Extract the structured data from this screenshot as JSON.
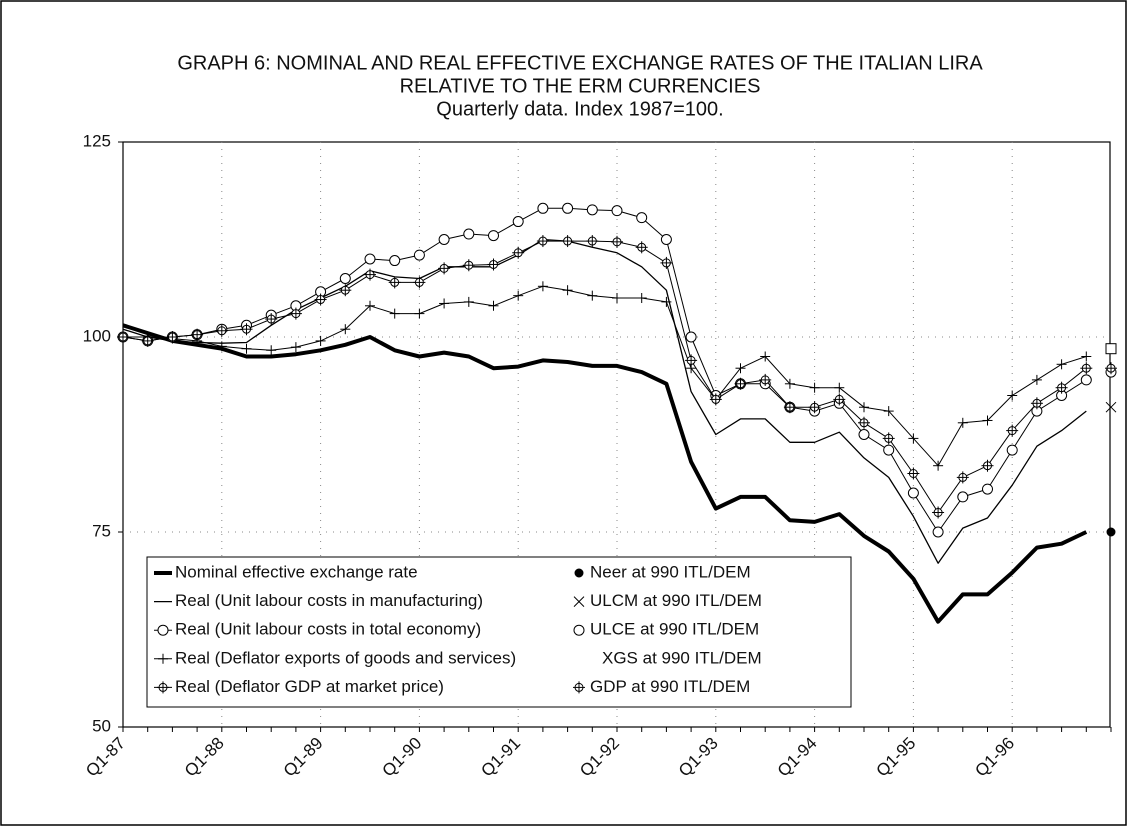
{
  "chart_data": {
    "type": "line",
    "title": "GRAPH 6:  NOMINAL AND REAL EFFECTIVE EXCHANGE RATES OF THE  ITALIAN LIRA",
    "title_line2": "RELATIVE TO THE ERM CURRENCIES",
    "subtitle": "Quarterly data.   Index 1987=100.",
    "categories": [
      "Q1-87",
      null,
      null,
      null,
      "Q1-88",
      null,
      null,
      null,
      "Q1-89",
      null,
      null,
      null,
      "Q1-90",
      null,
      null,
      null,
      "Q1-91",
      null,
      null,
      null,
      "Q1-92",
      null,
      null,
      null,
      "Q1-93",
      null,
      null,
      null,
      "Q1-94",
      null,
      null,
      null,
      "Q1-95",
      null,
      null,
      null,
      "Q1-96",
      null,
      null,
      null,
      null
    ],
    "ylim": [
      50,
      125
    ],
    "yticks": [
      50,
      75,
      100,
      125
    ],
    "grid": true,
    "series": [
      {
        "name": "Nominal effective exchange rate",
        "color": "#000",
        "width": 4,
        "marker": "none",
        "values": [
          101.5,
          100.5,
          99.5,
          99,
          98.5,
          97.5,
          97.5,
          97.8,
          98.3,
          99,
          100,
          98.3,
          97.5,
          98,
          97.5,
          96,
          96.2,
          97,
          96.8,
          96.3,
          96.3,
          95.5,
          94,
          84,
          78,
          79.5,
          79.5,
          76.5,
          76.3,
          77.3,
          74.5,
          72.5,
          69,
          63.5,
          67,
          67,
          69.8,
          73,
          73.5,
          75,
          null
        ]
      },
      {
        "name": "Real (Unit labour costs in manufacturing)",
        "color": "#000",
        "width": 1.3,
        "marker": "none",
        "values": [
          101,
          100,
          99.5,
          99.3,
          99.2,
          99.3,
          101.5,
          103.5,
          105,
          106.5,
          108.5,
          107.7,
          107.5,
          109,
          109,
          109,
          110.5,
          112.5,
          112.3,
          111.5,
          110.8,
          109,
          106,
          93,
          87.5,
          89.5,
          89.5,
          86.5,
          86.5,
          87.8,
          84.5,
          82,
          77,
          71,
          75.5,
          76.8,
          81,
          86,
          88,
          90.5,
          null
        ]
      },
      {
        "name": "Real (Unit labour costs in total economy)",
        "color": "#000",
        "width": 1,
        "marker": "circle",
        "values": [
          100,
          99.5,
          100,
          100.3,
          101,
          101.5,
          102.8,
          104,
          105.8,
          107.5,
          110,
          109.8,
          110.5,
          112.5,
          113.2,
          113,
          114.8,
          116.5,
          116.5,
          116.3,
          116.2,
          115.3,
          112.5,
          100,
          92.5,
          94,
          94,
          91,
          90.5,
          91.5,
          87.5,
          85.5,
          80,
          75,
          79.5,
          80.5,
          85.5,
          90.5,
          92.5,
          94.5,
          null
        ]
      },
      {
        "name": "Real (Deflator exports of goods and services)",
        "color": "#000",
        "width": 1,
        "marker": "plus",
        "values": [
          100,
          100,
          99.8,
          99.5,
          98.8,
          98.5,
          98.3,
          98.7,
          99.5,
          101,
          104,
          103,
          103,
          104.3,
          104.5,
          104,
          105.3,
          106.5,
          106,
          105.3,
          105,
          105,
          104.5,
          96,
          92,
          96,
          97.5,
          94,
          93.5,
          93.5,
          91,
          90.5,
          87,
          83.5,
          89,
          89.3,
          92.5,
          94.5,
          96.5,
          97.5,
          null
        ]
      },
      {
        "name": "Real (Deflator GDP at market price)",
        "color": "#000",
        "width": 1,
        "marker": "star",
        "values": [
          100,
          99.5,
          100,
          100.3,
          100.8,
          101,
          102.3,
          103,
          104.8,
          106,
          108,
          107,
          107,
          108.8,
          109.2,
          109.3,
          110.8,
          112.3,
          112.3,
          112.3,
          112.2,
          111.5,
          109.5,
          97,
          92,
          94,
          94.5,
          91,
          91,
          92,
          89,
          87,
          82.5,
          77.5,
          82,
          83.5,
          88,
          91.5,
          93.5,
          96,
          null
        ]
      },
      {
        "name": "Neer at 990 ITL/DEM",
        "color": "#000",
        "width": 0,
        "marker": "dot",
        "values": [
          null,
          null,
          null,
          null,
          null,
          null,
          null,
          null,
          null,
          null,
          null,
          null,
          null,
          null,
          null,
          null,
          null,
          null,
          null,
          null,
          null,
          null,
          null,
          null,
          null,
          null,
          null,
          null,
          null,
          null,
          null,
          null,
          null,
          null,
          null,
          null,
          null,
          null,
          null,
          null,
          75
        ]
      },
      {
        "name": "ULCM at 990 ITL/DEM",
        "color": "#000",
        "width": 0,
        "marker": "x",
        "values": [
          null,
          null,
          null,
          null,
          null,
          null,
          null,
          null,
          null,
          null,
          null,
          null,
          null,
          null,
          null,
          null,
          null,
          null,
          null,
          null,
          null,
          null,
          null,
          null,
          null,
          null,
          null,
          null,
          null,
          null,
          null,
          null,
          null,
          null,
          null,
          null,
          null,
          null,
          null,
          null,
          91
        ]
      },
      {
        "name": "ULCE at 990 ITL/DEM",
        "color": "#000",
        "width": 0,
        "marker": "circle",
        "values": [
          null,
          null,
          null,
          null,
          null,
          null,
          null,
          null,
          null,
          null,
          null,
          null,
          null,
          null,
          null,
          null,
          null,
          null,
          null,
          null,
          null,
          null,
          null,
          null,
          null,
          null,
          null,
          null,
          null,
          null,
          null,
          null,
          null,
          null,
          null,
          null,
          null,
          null,
          null,
          null,
          95.5
        ]
      },
      {
        "name": "XGS at 990 ITL/DEM",
        "color": "#000",
        "width": 0,
        "marker": "square",
        "values": [
          null,
          null,
          null,
          null,
          null,
          null,
          null,
          null,
          null,
          null,
          null,
          null,
          null,
          null,
          null,
          null,
          null,
          null,
          null,
          null,
          null,
          null,
          null,
          null,
          null,
          null,
          null,
          null,
          null,
          null,
          null,
          null,
          null,
          null,
          null,
          null,
          null,
          null,
          null,
          null,
          98.5
        ]
      },
      {
        "name": "GDP at 990 ITL/DEM",
        "color": "#000",
        "width": 0,
        "marker": "star",
        "values": [
          null,
          null,
          null,
          null,
          null,
          null,
          null,
          null,
          null,
          null,
          null,
          null,
          null,
          null,
          null,
          null,
          null,
          null,
          null,
          null,
          null,
          null,
          null,
          null,
          null,
          null,
          null,
          null,
          null,
          null,
          null,
          null,
          null,
          null,
          null,
          null,
          null,
          null,
          null,
          null,
          96
        ]
      }
    ]
  }
}
